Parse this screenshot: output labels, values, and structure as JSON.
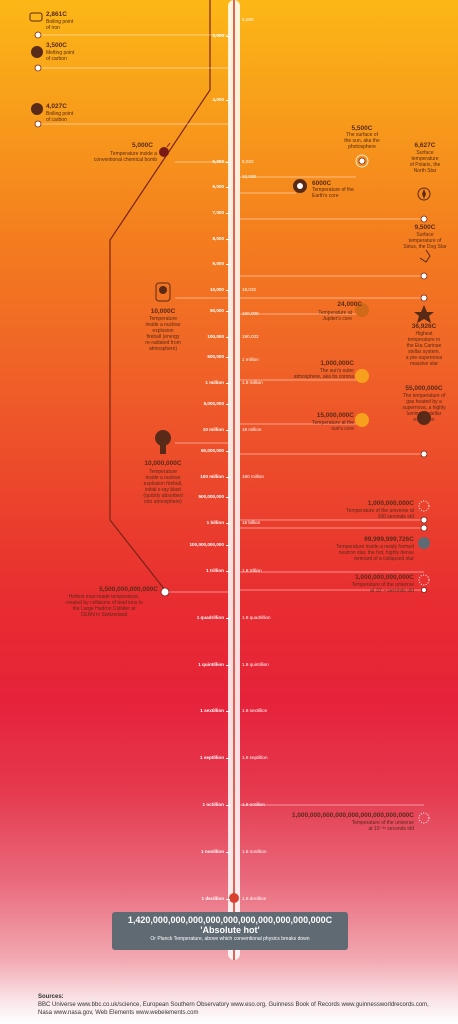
{
  "top_label": "6,000",
  "left_ticks": [
    "3,000",
    "4,000",
    "5,000",
    "6,000",
    "7,000",
    "8,000",
    "9,000",
    "10,000",
    "50,000",
    "100,000",
    "500,000",
    "1 million",
    "5,000,000",
    "10 million",
    "50,000,000",
    "100 million",
    "500,000,000",
    "1 billion",
    "100,000,000,000",
    "1 trillion",
    "1 quadrillion",
    "1 quintillion",
    "1 sextillion",
    "1 septillion",
    "1 octillion",
    "1 nonillion",
    "1 decillion"
  ],
  "right_ticks": [
    "9,032",
    "10,000",
    "18,032",
    "100,000",
    "180,032",
    "1 million",
    "1.8 million",
    "18 million",
    "180 million",
    "18 billion",
    "1.8 trillion",
    "1.8 quadrillion",
    "1.8 quintillion",
    "1.8 sextillion",
    "1.8 septillion",
    "1.8 octillion",
    "1.8 nonillion",
    "1.8 decillion"
  ],
  "left_events": [
    {
      "value": "2,861C",
      "text": "Boiling point\nof iron"
    },
    {
      "value": "3,500C",
      "text": "Melting point\nof carbon"
    },
    {
      "value": "4,027C",
      "text": "Boiling point\nof carbon"
    },
    {
      "value": "5,000C",
      "text": "Temperature inside a\nconventional chemical bomb"
    },
    {
      "value": "10,000C",
      "text": "Temperature\ninside a nuclear\nexplosion\nfireball (energy\nre-radiated from\natmosphere)"
    },
    {
      "value": "10,000,000C",
      "text": "Temperature\ninside a nuclear\nexplosion fireball,\ninitial x-ray blast\n(quickly absorbed\ninto atmosphere)"
    },
    {
      "value": "5,500,000,000,000C",
      "text": "Hottest man-made temperature,\ncreated by collisions of lead ions in\nthe Large Hadron Collider at\nCERN in Switzerland"
    }
  ],
  "right_events": [
    {
      "value": "5,500C",
      "text": "The surface of\nthe sun, aka the\nphotosphere"
    },
    {
      "value": "6,627C",
      "text": "Surface\ntemperature\nof Polaris, the\nNorth Star"
    },
    {
      "value": "6000C",
      "text": "Temperature of the\nEarth's core"
    },
    {
      "value": "9,500C",
      "text": "Surface\ntemperature of\nSirius, the Dog Star"
    },
    {
      "value": "24,000C",
      "text": "Temperature at\nJupiter's core"
    },
    {
      "value": "36,926C",
      "text": "Highest\ntemperature in\nthe Eta Carinae\nstellar system,\na pre-supernova\nmassive star"
    },
    {
      "value": "1,000,000C",
      "text": "The sun's outer\natmosphere, aka its corona"
    },
    {
      "value": "55,000,000C",
      "text": "The temperature of\ngas heated by a\nsupernova, a highly\nluminous stellar\nexplosion"
    },
    {
      "value": "15,000,000C",
      "text": "Temperature at the\nsun's core"
    },
    {
      "value": "1,000,000,000C",
      "text": "Temperature of the universe at\n100 seconds old"
    },
    {
      "value": "99,999,999,726C",
      "text": "Temperature inside a newly formed\nneutron star, the hot, highly dense\nremnant of a collapsed star"
    },
    {
      "value": "1,000,000,000,000C",
      "text": "Temperature of the universe\nat 10⁻⁴ seconds old"
    },
    {
      "value": "1,000,000,000,000,000,000,000,000,000C",
      "text": "Temperature of the universe\nat 10⁻³⁶ seconds old"
    }
  ],
  "planck": {
    "value": "1,420,000,000,000,000,000,000,000,000,000,000C",
    "name": "'Absolute hot'",
    "note": "Or Planck Temperature, above which conventional physics breaks down"
  },
  "sources": {
    "heading": "Sources:",
    "line1": "BBC Universe www.bbc.co.uk/science, European Southern Observatory www.eso.org, Guinness Book of Records www.guinnessworldrecords.com,",
    "line2": "Nasa www.nasa.gov, Web Elements www.webelements.com"
  }
}
